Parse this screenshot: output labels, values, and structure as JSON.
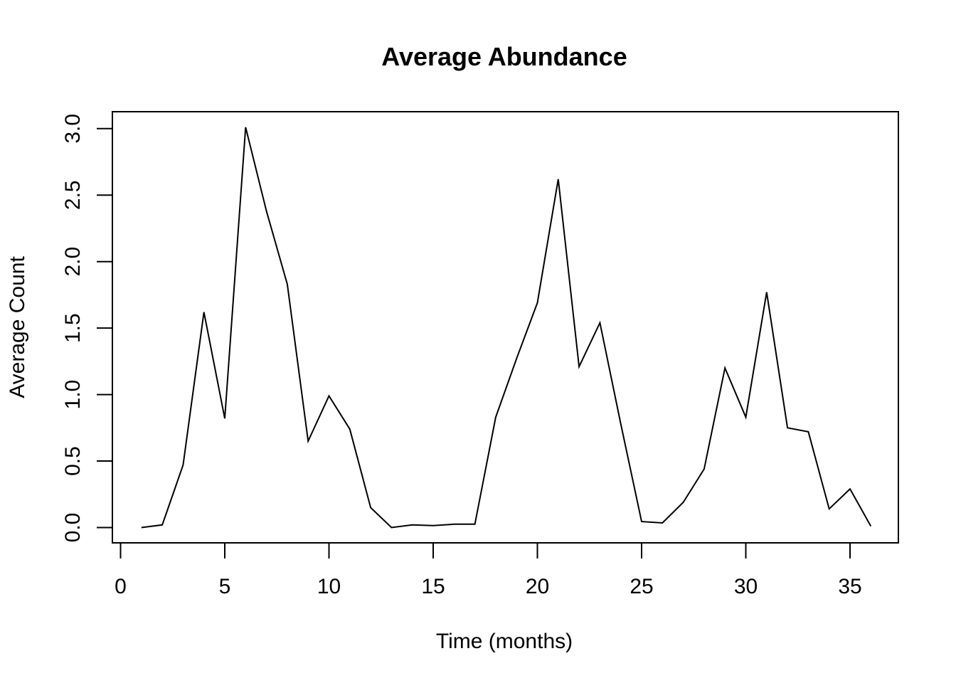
{
  "chart_data": {
    "type": "line",
    "title": "Average Abundance",
    "xlabel": "Time (months)",
    "ylabel": "Average Count",
    "xlim": [
      0,
      37
    ],
    "ylim": [
      -0.1,
      3.1
    ],
    "xticks": [
      0,
      5,
      10,
      15,
      20,
      25,
      30,
      35
    ],
    "xtick_labels": [
      "0",
      "5",
      "10",
      "15",
      "20",
      "25",
      "30",
      "35"
    ],
    "yticks": [
      0.0,
      0.5,
      1.0,
      1.5,
      2.0,
      2.5,
      3.0
    ],
    "ytick_labels": [
      "0.0",
      "0.5",
      "1.0",
      "1.5",
      "2.0",
      "2.5",
      "3.0"
    ],
    "grid": false,
    "legend": "none",
    "series": [
      {
        "color": "#000000",
        "x": [
          1,
          2,
          3,
          4,
          5,
          6,
          7,
          8,
          9,
          10,
          11,
          12,
          13,
          14,
          15,
          16,
          17,
          18,
          19,
          20,
          21,
          22,
          23,
          24,
          25,
          26,
          27,
          28,
          29,
          30,
          31,
          32,
          33,
          34,
          35,
          36
        ],
        "values": [
          0.0,
          0.02,
          0.47,
          1.62,
          0.82,
          3.01,
          2.38,
          1.83,
          0.65,
          0.99,
          0.74,
          0.15,
          0.0,
          0.02,
          0.015,
          0.025,
          0.025,
          0.83,
          1.27,
          1.69,
          2.62,
          1.21,
          1.54,
          0.78,
          0.045,
          0.035,
          0.19,
          0.44,
          1.2,
          0.83,
          1.77,
          0.75,
          0.72,
          0.14,
          0.29,
          0.01
        ]
      }
    ]
  }
}
